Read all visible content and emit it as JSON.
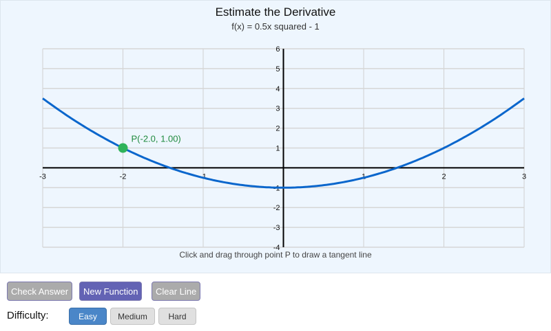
{
  "chart_data": {
    "type": "line",
    "title": "Estimate the Derivative",
    "subtitle": "f(x) = 0.5x squared - 1",
    "function": "0.5*x^2 - 1",
    "xlim": [
      -3,
      3
    ],
    "ylim": [
      -4,
      6
    ],
    "x_ticks": [
      "-3",
      "-2",
      "-1",
      "1",
      "2",
      "3"
    ],
    "y_ticks": [
      "6",
      "5",
      "4",
      "3",
      "2",
      "1",
      "-1",
      "-2",
      "-3",
      "-4"
    ],
    "grid": true,
    "point": {
      "label": "P(-2.0, 1.00)",
      "x": -2.0,
      "y": 1.0
    },
    "colors": {
      "curve": "#0a66cc",
      "point": "#2fb35a",
      "point_label": "#1f8a3e",
      "background": "#eef6fe"
    }
  },
  "hint": "Click and drag through point P to draw a tangent line",
  "buttons": {
    "check": "Check Answer",
    "new": "New Function",
    "clear": "Clear Line"
  },
  "difficulty": {
    "label": "Difficulty:",
    "options": [
      "Easy",
      "Medium",
      "Hard"
    ],
    "selected": "Easy"
  }
}
